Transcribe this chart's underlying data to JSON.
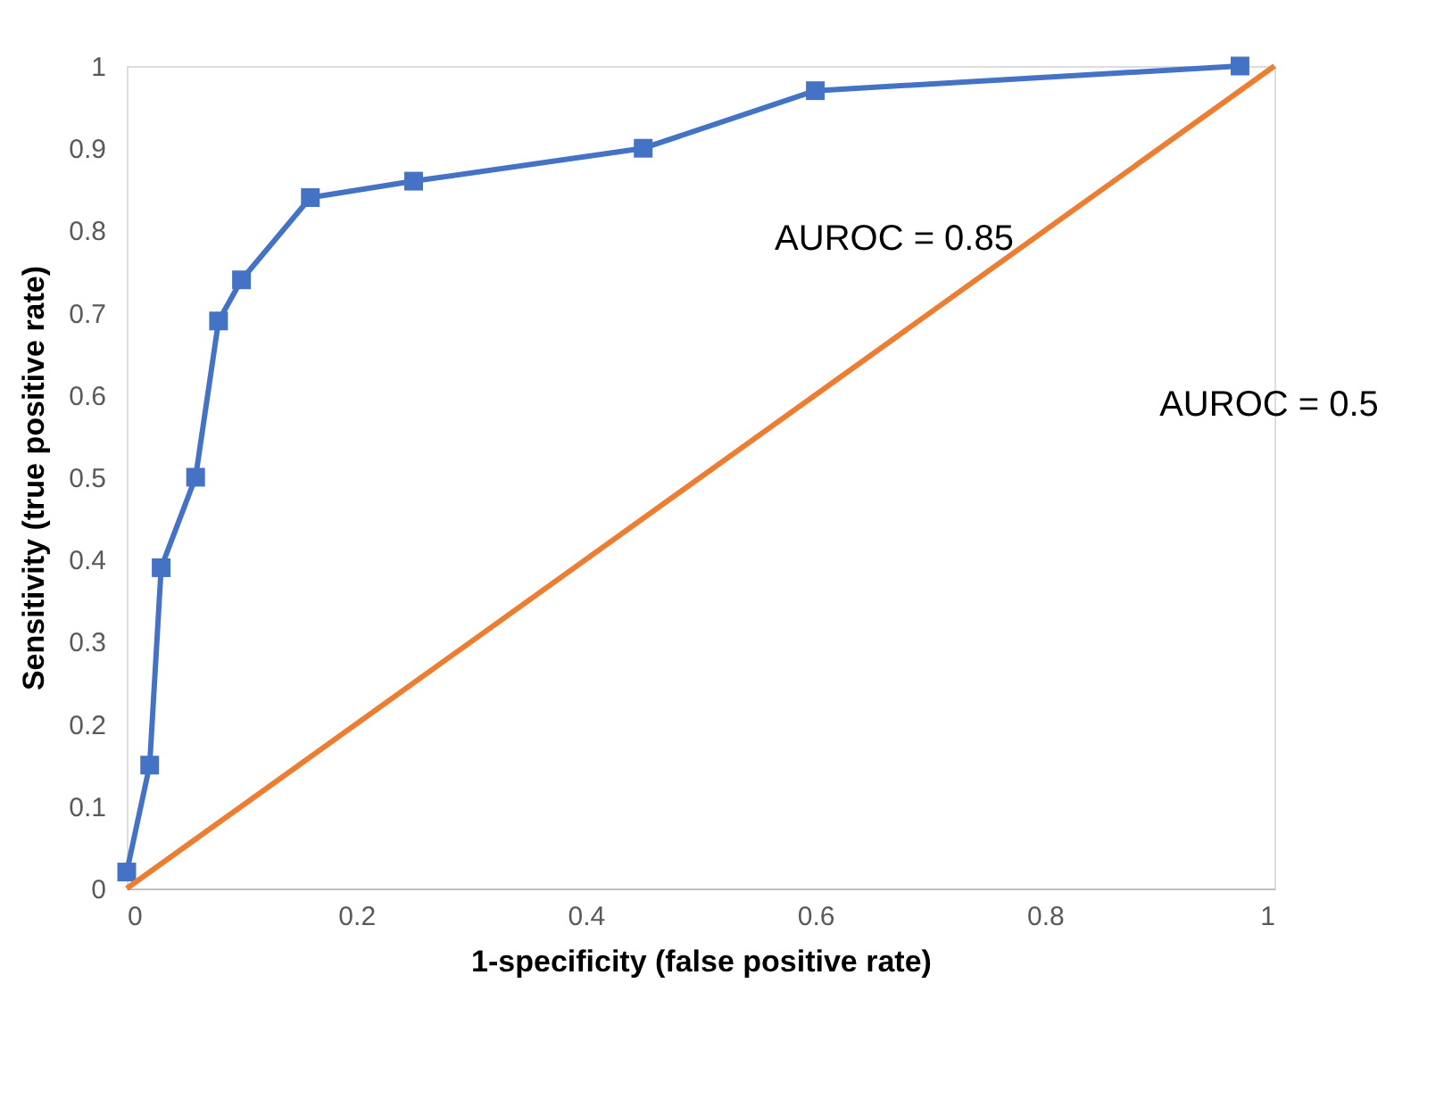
{
  "chart_data": {
    "type": "line",
    "xlabel": "1-specificity (false positive rate)",
    "ylabel": "Sensitivity (true positive rate)",
    "x": [
      0,
      0.02,
      0.03,
      0.06,
      0.08,
      0.1,
      0.16,
      0.25,
      0.45,
      0.6,
      0.97
    ],
    "series": [
      {
        "color": "#4472c4",
        "marker": "square",
        "values": [
          0.02,
          0.15,
          0.39,
          0.5,
          0.69,
          0.74,
          0.84,
          0.86,
          0.9,
          0.97,
          1.0
        ]
      },
      {
        "color": "#ed7d31",
        "marker": "none",
        "x": [
          0,
          1
        ],
        "values": [
          0,
          1
        ]
      }
    ],
    "xlim": [
      0,
      1
    ],
    "ylim": [
      0,
      1
    ],
    "xticks": [
      0,
      0.2,
      0.4,
      0.6,
      0.8,
      1
    ],
    "yticks": [
      0,
      0.1,
      0.2,
      0.3,
      0.4,
      0.5,
      0.6,
      0.7,
      0.8,
      0.9,
      1
    ],
    "grid": false,
    "legend": false,
    "line_style": "solid",
    "annotations": [
      "AUROC = 0.85",
      "AUROC = 0.5"
    ]
  }
}
